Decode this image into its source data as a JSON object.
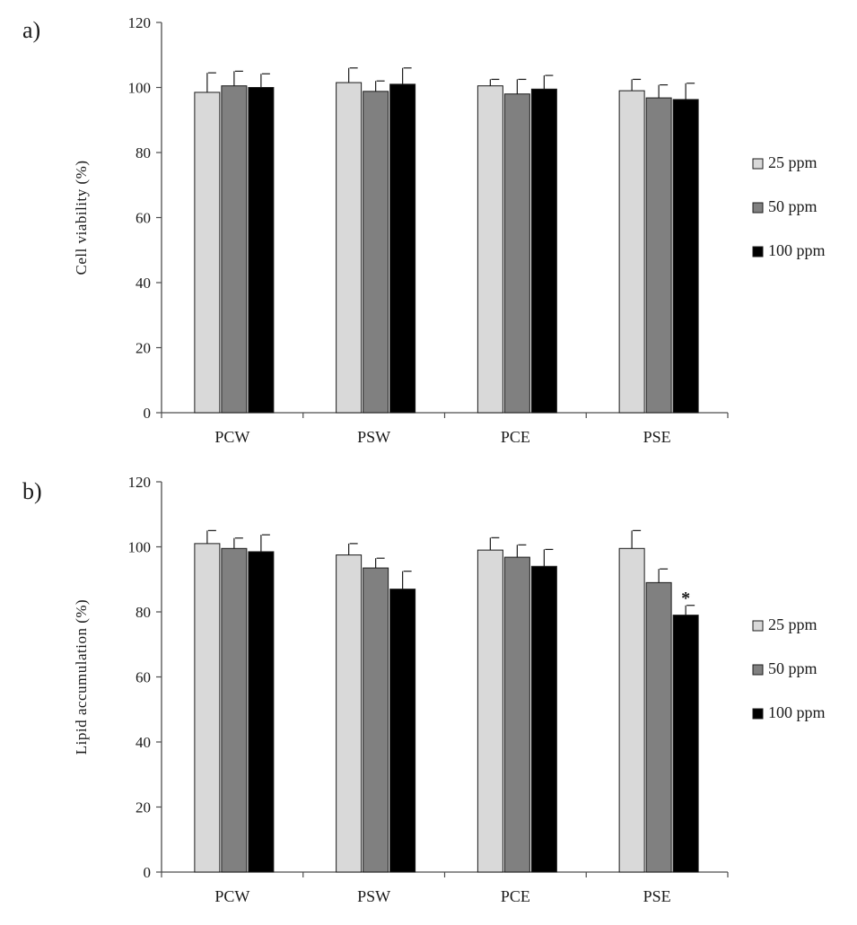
{
  "chart_data": [
    {
      "panel_label": "a)",
      "type": "bar",
      "categories": [
        "PCW",
        "PSW",
        "PCE",
        "PSE"
      ],
      "series": [
        {
          "name": "25 ppm",
          "color": "#d9d9d9",
          "values": [
            98.5,
            101.5,
            100.5,
            99.0
          ],
          "errors": [
            6.0,
            4.5,
            2.0,
            3.5
          ]
        },
        {
          "name": "50 ppm",
          "color": "#808080",
          "values": [
            100.5,
            98.8,
            98.0,
            96.8
          ],
          "errors": [
            4.5,
            3.2,
            4.5,
            4.0
          ]
        },
        {
          "name": "100 ppm",
          "color": "#000000",
          "values": [
            100.0,
            101.0,
            99.5,
            96.3
          ],
          "errors": [
            4.2,
            5.0,
            4.2,
            5.0
          ]
        }
      ],
      "xlabel": "",
      "ylabel": "Cell viability (%)",
      "yticks": [
        "0",
        "20",
        "40",
        "60",
        "80",
        "100",
        "120"
      ],
      "ylim": [
        0,
        120
      ],
      "grid": false,
      "legend_position": "right",
      "annotations": []
    },
    {
      "panel_label": "b)",
      "type": "bar",
      "categories": [
        "PCW",
        "PSW",
        "PCE",
        "PSE"
      ],
      "series": [
        {
          "name": "25 ppm",
          "color": "#d9d9d9",
          "values": [
            101.0,
            97.5,
            99.0,
            99.5
          ],
          "errors": [
            4.0,
            3.5,
            3.8,
            5.5
          ]
        },
        {
          "name": "50 ppm",
          "color": "#808080",
          "values": [
            99.5,
            93.5,
            96.8,
            89.0
          ],
          "errors": [
            3.2,
            3.0,
            3.8,
            4.2
          ]
        },
        {
          "name": "100 ppm",
          "color": "#000000",
          "values": [
            98.5,
            87.0,
            94.0,
            79.0
          ],
          "errors": [
            5.2,
            5.5,
            5.2,
            3.0
          ]
        }
      ],
      "xlabel": "",
      "ylabel": "Lipid accumulation (%)",
      "yticks": [
        "0",
        "20",
        "40",
        "60",
        "80",
        "100",
        "120"
      ],
      "ylim": [
        0,
        120
      ],
      "grid": false,
      "legend_position": "right",
      "annotations": [
        {
          "text": "*",
          "category": "PSE",
          "series": "100 ppm"
        }
      ]
    }
  ]
}
